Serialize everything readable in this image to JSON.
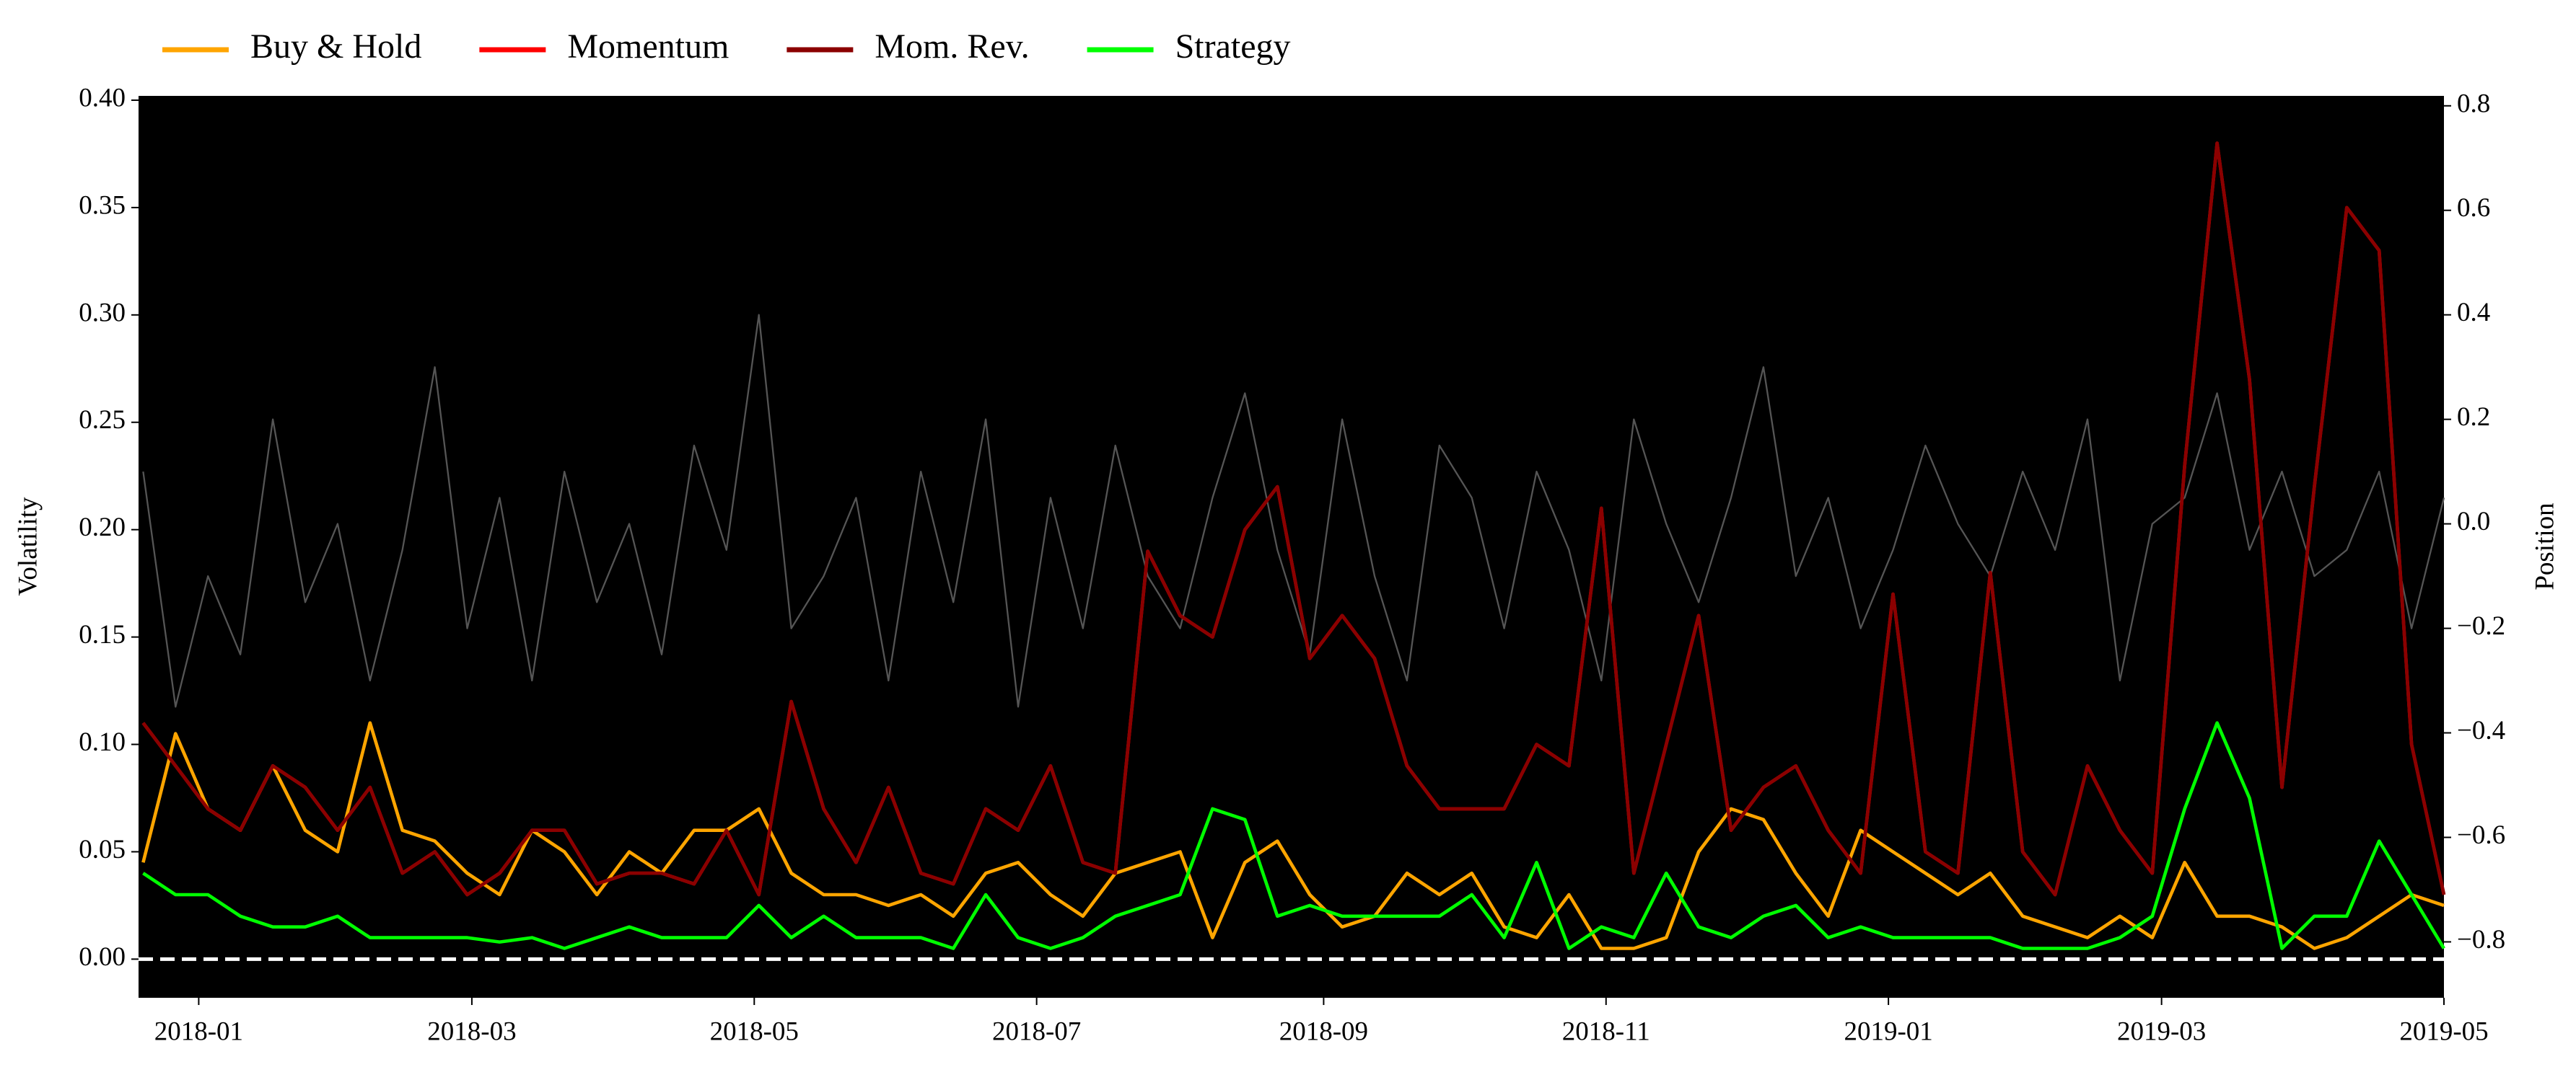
{
  "chart_data": {
    "type": "line",
    "y_label": "Volatility",
    "y2_label": "Position",
    "legend": "top-left",
    "background": "#000000",
    "hline": {
      "y": 0,
      "color": "#ffffff",
      "style": "dashed"
    },
    "xlim": [
      "2017-12-19",
      "2019-05-01"
    ],
    "xticks": [
      "2018-01",
      "2018-03",
      "2018-05",
      "2018-07",
      "2018-09",
      "2018-11",
      "2019-01",
      "2019-03",
      "2019-05"
    ],
    "ylim": [
      -0.018,
      0.402
    ],
    "yticks": [
      {
        "value": 0,
        "label": "0.00"
      },
      {
        "value": 0.05,
        "label": "0.05"
      },
      {
        "value": 0.1,
        "label": "0.10"
      },
      {
        "value": 0.15,
        "label": "0.15"
      },
      {
        "value": 0.2,
        "label": "0.20"
      },
      {
        "value": 0.25,
        "label": "0.25"
      },
      {
        "value": 0.3,
        "label": "0.30"
      },
      {
        "value": 0.35,
        "label": "0.35"
      },
      {
        "value": 0.4,
        "label": "0.40"
      }
    ],
    "y2lim": [
      -0.907,
      0.819
    ],
    "y2ticks": [
      {
        "value": -0.8,
        "label": "−0.8"
      },
      {
        "value": -0.6,
        "label": "−0.6"
      },
      {
        "value": -0.4,
        "label": "−0.4"
      },
      {
        "value": -0.2,
        "label": "−0.2"
      },
      {
        "value": 0,
        "label": "0.0"
      },
      {
        "value": 0.2,
        "label": "0.2"
      },
      {
        "value": 0.4,
        "label": "0.4"
      },
      {
        "value": 0.6,
        "label": "0.6"
      },
      {
        "value": 0.8,
        "label": "0.8"
      }
    ],
    "x": [
      "2017-12-20",
      "2017-12-27",
      "2018-01-03",
      "2018-01-10",
      "2018-01-17",
      "2018-01-24",
      "2018-01-31",
      "2018-02-07",
      "2018-02-14",
      "2018-02-21",
      "2018-02-28",
      "2018-03-07",
      "2018-03-14",
      "2018-03-21",
      "2018-03-28",
      "2018-04-04",
      "2018-04-11",
      "2018-04-18",
      "2018-04-25",
      "2018-05-02",
      "2018-05-09",
      "2018-05-16",
      "2018-05-23",
      "2018-05-30",
      "2018-06-06",
      "2018-06-13",
      "2018-06-20",
      "2018-06-27",
      "2018-07-04",
      "2018-07-11",
      "2018-07-18",
      "2018-07-25",
      "2018-08-01",
      "2018-08-08",
      "2018-08-15",
      "2018-08-22",
      "2018-08-29",
      "2018-09-05",
      "2018-09-12",
      "2018-09-19",
      "2018-09-26",
      "2018-10-03",
      "2018-10-10",
      "2018-10-17",
      "2018-10-24",
      "2018-10-31",
      "2018-11-07",
      "2018-11-14",
      "2018-11-21",
      "2018-11-28",
      "2018-12-05",
      "2018-12-12",
      "2018-12-19",
      "2018-12-26",
      "2019-01-02",
      "2019-01-09",
      "2019-01-16",
      "2019-01-23",
      "2019-01-30",
      "2019-02-06",
      "2019-02-13",
      "2019-02-20",
      "2019-02-27",
      "2019-03-06",
      "2019-03-13",
      "2019-03-20",
      "2019-03-27",
      "2019-04-03",
      "2019-04-10",
      "2019-04-17",
      "2019-04-24",
      "2019-05-01"
    ],
    "series": [
      {
        "axis": "y2",
        "color": "#555555",
        "width": 1,
        "values": [
          0.1,
          -0.35,
          -0.1,
          -0.25,
          0.2,
          -0.15,
          0.0,
          -0.3,
          -0.05,
          0.3,
          -0.2,
          0.05,
          -0.3,
          0.1,
          -0.15,
          0.0,
          -0.25,
          0.15,
          -0.05,
          0.4,
          -0.2,
          -0.1,
          0.05,
          -0.3,
          0.1,
          -0.15,
          0.2,
          -0.35,
          0.05,
          -0.2,
          0.15,
          -0.1,
          -0.2,
          0.05,
          0.25,
          -0.05,
          -0.25,
          0.2,
          -0.1,
          -0.3,
          0.15,
          0.05,
          -0.2,
          0.1,
          -0.05,
          -0.3,
          0.2,
          0.0,
          -0.15,
          0.05,
          0.3,
          -0.1,
          0.05,
          -0.2,
          -0.05,
          0.15,
          0.0,
          -0.1,
          0.1,
          -0.05,
          0.2,
          -0.3,
          0.0,
          0.05,
          0.25,
          -0.05,
          0.1,
          -0.1,
          -0.05,
          0.1,
          -0.2,
          0.05
        ]
      },
      {
        "name": "Buy & Hold",
        "color": "#ffa500",
        "width": 2,
        "values": [
          0.045,
          0.105,
          0.07,
          0.06,
          0.09,
          0.06,
          0.05,
          0.11,
          0.06,
          0.055,
          0.04,
          0.03,
          0.06,
          0.05,
          0.03,
          0.05,
          0.04,
          0.06,
          0.06,
          0.07,
          0.04,
          0.03,
          0.03,
          0.025,
          0.03,
          0.02,
          0.04,
          0.045,
          0.03,
          0.02,
          0.04,
          0.045,
          0.05,
          0.01,
          0.045,
          0.055,
          0.03,
          0.015,
          0.02,
          0.04,
          0.03,
          0.04,
          0.015,
          0.01,
          0.03,
          0.005,
          0.005,
          0.01,
          0.05,
          0.07,
          0.065,
          0.04,
          0.02,
          0.06,
          0.05,
          0.04,
          0.03,
          0.04,
          0.02,
          0.015,
          0.01,
          0.02,
          0.01,
          0.045,
          0.02,
          0.02,
          0.015,
          0.005,
          0.01,
          0.02,
          0.03,
          0.025
        ]
      },
      {
        "name": "Momentum",
        "color": "#ff0000",
        "width": 2,
        "values": [
          0.11,
          0.09,
          0.07,
          0.06,
          0.09,
          0.08,
          0.06,
          0.08,
          0.04,
          0.05,
          0.03,
          0.04,
          0.06,
          0.06,
          0.035,
          0.04,
          0.04,
          0.035,
          0.06,
          0.03,
          0.12,
          0.07,
          0.045,
          0.08,
          0.04,
          0.035,
          0.07,
          0.06,
          0.09,
          0.045,
          0.04,
          0.19,
          0.16,
          0.15,
          0.2,
          0.22,
          0.14,
          0.16,
          0.14,
          0.09,
          0.07,
          0.07,
          0.07,
          0.1,
          0.09,
          0.21,
          0.04,
          0.1,
          0.16,
          0.06,
          0.08,
          0.09,
          0.06,
          0.04,
          0.17,
          0.05,
          0.04,
          0.18,
          0.05,
          0.03,
          0.09,
          0.06,
          0.04,
          0.23,
          0.38,
          0.27,
          0.08,
          0.22,
          0.35,
          0.33,
          0.1,
          0.03
        ]
      },
      {
        "name": "Mom. Rev.",
        "color": "#8b0000",
        "width": 2,
        "values": [
          0.11,
          0.09,
          0.07,
          0.06,
          0.09,
          0.08,
          0.06,
          0.08,
          0.04,
          0.05,
          0.03,
          0.04,
          0.06,
          0.06,
          0.035,
          0.04,
          0.04,
          0.035,
          0.06,
          0.03,
          0.12,
          0.07,
          0.045,
          0.08,
          0.04,
          0.035,
          0.07,
          0.06,
          0.09,
          0.045,
          0.04,
          0.19,
          0.16,
          0.15,
          0.2,
          0.22,
          0.14,
          0.16,
          0.14,
          0.09,
          0.07,
          0.07,
          0.07,
          0.1,
          0.09,
          0.21,
          0.04,
          0.1,
          0.16,
          0.06,
          0.08,
          0.09,
          0.06,
          0.04,
          0.17,
          0.05,
          0.04,
          0.18,
          0.05,
          0.03,
          0.09,
          0.06,
          0.04,
          0.23,
          0.38,
          0.27,
          0.08,
          0.22,
          0.35,
          0.33,
          0.1,
          0.03
        ]
      },
      {
        "name": "Strategy",
        "color": "#00ff00",
        "width": 2,
        "values": [
          0.04,
          0.03,
          0.03,
          0.02,
          0.015,
          0.015,
          0.02,
          0.01,
          0.01,
          0.01,
          0.01,
          0.008,
          0.01,
          0.005,
          0.01,
          0.015,
          0.01,
          0.01,
          0.01,
          0.025,
          0.01,
          0.02,
          0.01,
          0.01,
          0.01,
          0.005,
          0.03,
          0.01,
          0.005,
          0.01,
          0.02,
          0.025,
          0.03,
          0.07,
          0.065,
          0.02,
          0.025,
          0.02,
          0.02,
          0.02,
          0.02,
          0.03,
          0.01,
          0.045,
          0.005,
          0.015,
          0.01,
          0.04,
          0.015,
          0.01,
          0.02,
          0.025,
          0.01,
          0.015,
          0.01,
          0.01,
          0.01,
          0.01,
          0.005,
          0.005,
          0.005,
          0.01,
          0.02,
          0.07,
          0.11,
          0.075,
          0.005,
          0.02,
          0.02,
          0.055,
          0.03,
          0.005
        ]
      }
    ]
  }
}
